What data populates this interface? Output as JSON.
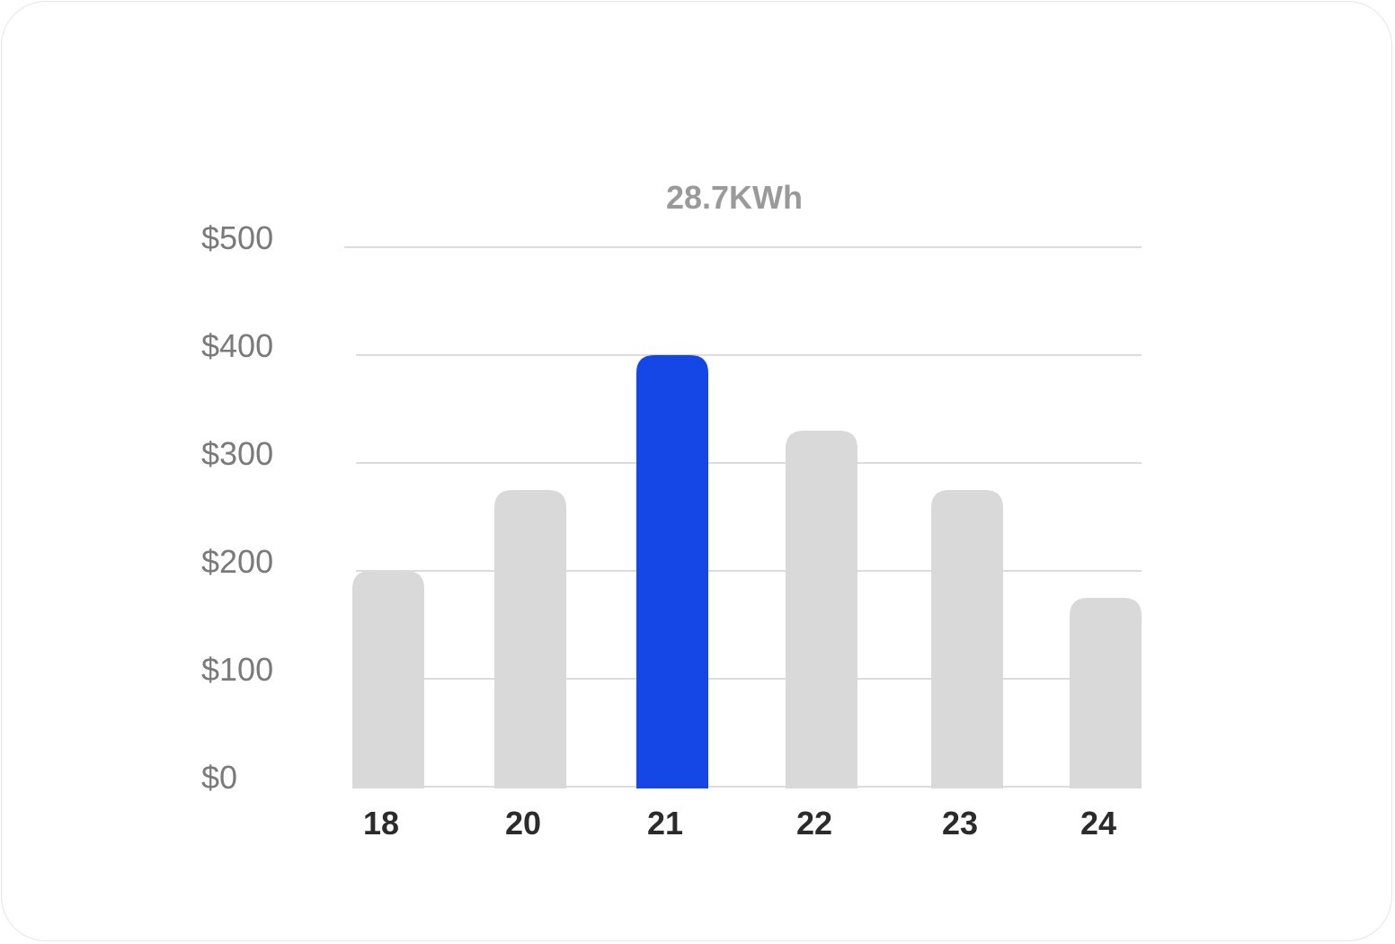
{
  "chart_data": {
    "type": "bar",
    "categories": [
      "18",
      "20",
      "21",
      "22",
      "23",
      "24"
    ],
    "values": [
      200,
      275,
      400,
      330,
      275,
      175
    ],
    "highlight_index": 2,
    "y_ticks": [
      "$0",
      "$100",
      "$200",
      "$300",
      "$400",
      "$500"
    ],
    "ylim": [
      0,
      500
    ],
    "annotation": "28.7KWh",
    "title": "",
    "xlabel": "",
    "ylabel": "",
    "grid": true,
    "colors": {
      "bar": "#d9d9d9",
      "highlight": "#1447e6",
      "grid": "#dcdcdc",
      "tick_y": "#7a7a7a",
      "tick_x": "#2b2b2b",
      "annotation": "#9a9a9a"
    }
  }
}
